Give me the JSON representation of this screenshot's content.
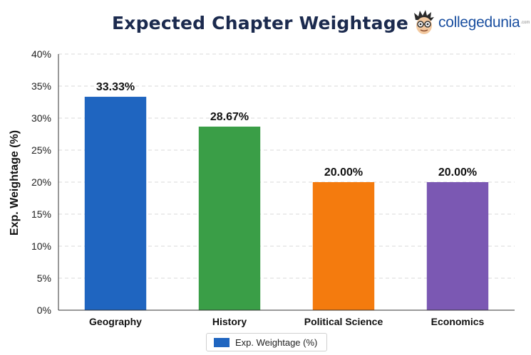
{
  "chart_data": {
    "type": "bar",
    "title": "Expected Chapter Weightage",
    "ylabel": "Exp. Weightage (%)",
    "xlabel": "",
    "categories": [
      "Geography",
      "History",
      "Political Science",
      "Economics"
    ],
    "series": [
      {
        "name": "Exp. Weightage (%)",
        "values": [
          33.33,
          28.67,
          20.0,
          20.0
        ]
      }
    ],
    "data_labels": [
      "33.33%",
      "28.67%",
      "20.00%",
      "20.00%"
    ],
    "bar_colors": [
      "#1f65c0",
      "#3a9e47",
      "#f47b0e",
      "#7b58b3"
    ],
    "ylim": [
      0,
      40
    ],
    "yticks": [
      0,
      5,
      10,
      15,
      20,
      25,
      30,
      35,
      40
    ],
    "ytick_labels": [
      "0%",
      "5%",
      "10%",
      "15%",
      "20%",
      "25%",
      "30%",
      "35%",
      "40%"
    ],
    "grid": true,
    "legend": "bottom-center"
  },
  "logo": {
    "text": "collegedunia",
    "sup": ".com",
    "icon": "cartoon-face-logo-icon"
  }
}
